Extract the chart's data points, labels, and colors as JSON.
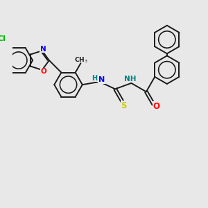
{
  "background_color": "#e8e8e8",
  "bond_color": "#1a1a1a",
  "atom_colors": {
    "N": "#0000ff",
    "O": "#ff0000",
    "S": "#cccc00",
    "Cl": "#00bb00",
    "H": "#008080"
  },
  "figsize": [
    3.0,
    3.0
  ],
  "dpi": 100,
  "xlim": [
    0,
    10
  ],
  "ylim": [
    0,
    10
  ]
}
